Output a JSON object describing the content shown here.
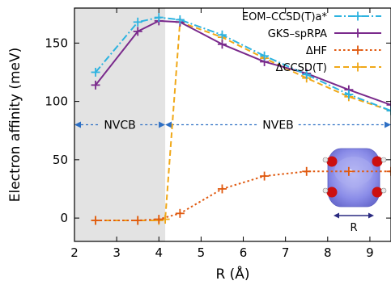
{
  "chart_data": {
    "type": "line",
    "xlabel": "R (Å)",
    "ylabel": "Electron affinity (meV)",
    "xlim": [
      2,
      9.5
    ],
    "ylim": [
      -20,
      180
    ],
    "xticks": [
      2,
      3,
      4,
      5,
      6,
      7,
      8,
      9
    ],
    "yticks": [
      0,
      50,
      100,
      150
    ],
    "grid": false,
    "legend_position": "top-right",
    "shaded_region": {
      "x_from": 2,
      "x_to": 4.15,
      "color": "#e3e3e3"
    },
    "regions": [
      {
        "label": "NVCB",
        "x_from": 2,
        "x_to": 4.15,
        "y": 80
      },
      {
        "label": "NVEB",
        "x_from": 4.15,
        "x_to": 9.5,
        "y": 80
      }
    ],
    "region_arrow_color": "#2d6fc4",
    "series": [
      {
        "name": "EOM–CCSD(T)a*",
        "color": "#2db3e0",
        "dash": "dashdot",
        "x": [
          2.5,
          3.5,
          4.0,
          4.5,
          5.5,
          6.5,
          7.5,
          8.5,
          9.5
        ],
        "y": [
          125,
          168,
          172,
          170,
          157,
          139,
          123,
          106,
          92
        ]
      },
      {
        "name": "GKS–spRPA",
        "color": "#7a2a8c",
        "dash": "solid",
        "x": [
          2.5,
          3.5,
          4.0,
          4.5,
          5.5,
          6.5,
          7.5,
          8.5,
          9.5
        ],
        "y": [
          114,
          160,
          169,
          168,
          149,
          134,
          124,
          110,
          97
        ]
      },
      {
        "name": "ΔHF",
        "color": "#e05a10",
        "dash": "dotted",
        "x": [
          2.5,
          3.5,
          4.0,
          4.5,
          5.5,
          6.5,
          7.5,
          8.5,
          9.5
        ],
        "y": [
          -2,
          -2,
          -1,
          4,
          25,
          36,
          40,
          40,
          40
        ]
      },
      {
        "name": "ΔCCSD(T)",
        "color": "#f0a818",
        "dash": "dashed",
        "x": [
          2.5,
          3.5,
          4.0,
          4.15,
          4.5,
          5.5,
          6.5,
          7.5,
          8.5,
          9.5
        ],
        "y": [
          -2,
          -2,
          -2,
          -1,
          168,
          155,
          137,
          120,
          104,
          92
        ]
      }
    ],
    "inset": {
      "description_label": "R",
      "color": "#8a8ce8"
    }
  }
}
